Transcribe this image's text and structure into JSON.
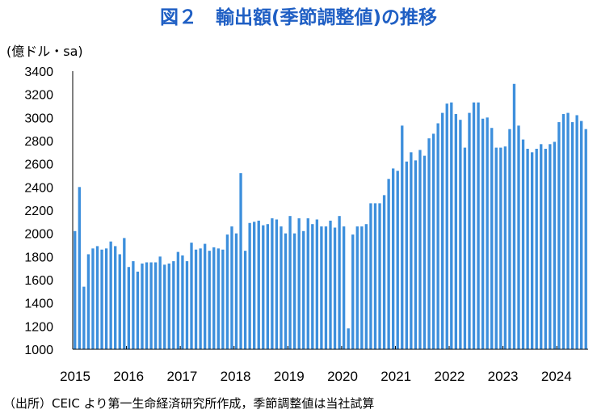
{
  "title": "図２　輸出額(季節調整値)の推移",
  "ylabel": "(億ドル・sa)",
  "source_note": "（出所）CEIC より第一生命経済研究所作成，季節調整値は当社試算",
  "colors": {
    "bar": "#3d8fdc",
    "title": "#1f5fc4",
    "axis": "#000000"
  },
  "chart_data": {
    "type": "bar",
    "ylim": [
      1000,
      3400
    ],
    "yticks": [
      1000,
      1200,
      1400,
      1600,
      1800,
      2000,
      2200,
      2400,
      2600,
      2800,
      3000,
      3200,
      3400
    ],
    "xticks": [
      "2015",
      "2016",
      "2017",
      "2018",
      "2019",
      "2020",
      "2021",
      "2022",
      "2023",
      "2024"
    ],
    "grid": false,
    "start": "2015-01",
    "values": [
      2020,
      2400,
      1540,
      1820,
      1870,
      1890,
      1860,
      1870,
      1930,
      1890,
      1820,
      1960,
      1710,
      1760,
      1670,
      1740,
      1750,
      1750,
      1750,
      1800,
      1730,
      1740,
      1760,
      1840,
      1810,
      1760,
      1920,
      1860,
      1870,
      1910,
      1850,
      1880,
      1870,
      1860,
      1990,
      2060,
      2000,
      2520,
      1850,
      2090,
      2100,
      2110,
      2070,
      2080,
      2130,
      2120,
      2060,
      2000,
      2150,
      2000,
      2130,
      2020,
      2130,
      2080,
      2120,
      2060,
      2060,
      2110,
      2050,
      2150,
      2060,
      1180,
      1990,
      2060,
      2060,
      2080,
      2260,
      2260,
      2260,
      2330,
      2470,
      2560,
      2540,
      2930,
      2620,
      2700,
      2630,
      2720,
      2670,
      2820,
      2860,
      2950,
      3040,
      3120,
      3130,
      3030,
      2980,
      2740,
      3040,
      3130,
      3130,
      2990,
      3000,
      2910,
      2740,
      2740,
      2750,
      2900,
      3290,
      2930,
      2810,
      2730,
      2700,
      2730,
      2770,
      2730,
      2770,
      2790,
      2960,
      3030,
      3040,
      2960,
      3020,
      2970,
      2900
    ]
  }
}
